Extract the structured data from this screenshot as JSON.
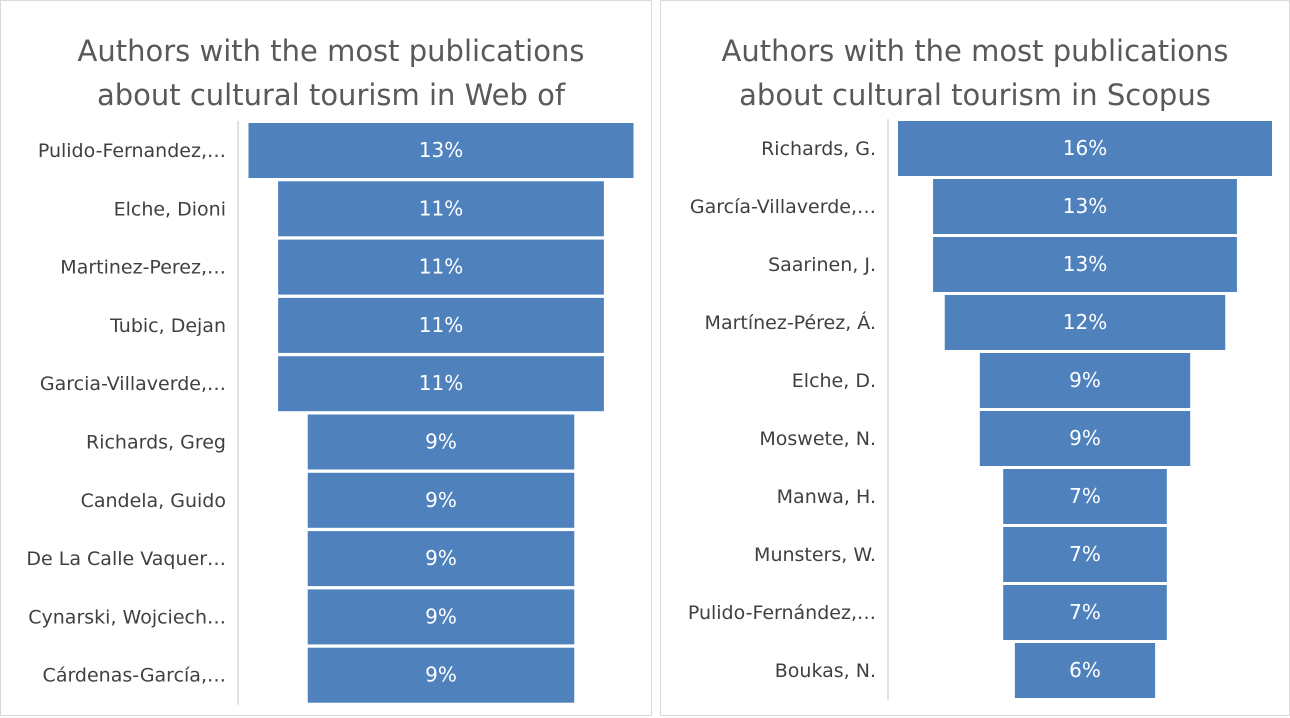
{
  "chart_data": [
    {
      "type": "funnel",
      "title": "Authors with the most publications about cultural tourism in Web of Science",
      "categories": [
        "Pulido-Fernandez,…",
        "Elche, Dioni",
        "Martinez-Perez,…",
        "Tubic, Dejan",
        "Garcia-Villaverde,…",
        "Richards, Greg",
        "Candela, Guido",
        "De La Calle Vaquer…",
        "Cynarski, Wojciech…",
        "Cárdenas-García,…"
      ],
      "values": [
        13,
        11,
        11,
        11,
        11,
        9,
        9,
        9,
        9,
        9
      ],
      "value_labels": [
        "13%",
        "11%",
        "11%",
        "11%",
        "11%",
        "9%",
        "9%",
        "9%",
        "9%",
        "9%"
      ],
      "color": "#4f81bd"
    },
    {
      "type": "funnel",
      "title": "Authors with the most publications about cultural tourism in Scopus",
      "categories": [
        "Richards, G.",
        "García-Villaverde,…",
        "Saarinen, J.",
        "Martínez-Pérez, Á.",
        "Elche, D.",
        "Moswete, N.",
        "Manwa, H.",
        "Munsters, W.",
        "Pulido-Fernández,…",
        "Boukas, N."
      ],
      "values": [
        16,
        13,
        13,
        12,
        9,
        9,
        7,
        7,
        7,
        6
      ],
      "value_labels": [
        "16%",
        "13%",
        "13%",
        "12%",
        "9%",
        "9%",
        "7%",
        "7%",
        "7%",
        "6%"
      ],
      "color": "#4f81bd"
    }
  ]
}
